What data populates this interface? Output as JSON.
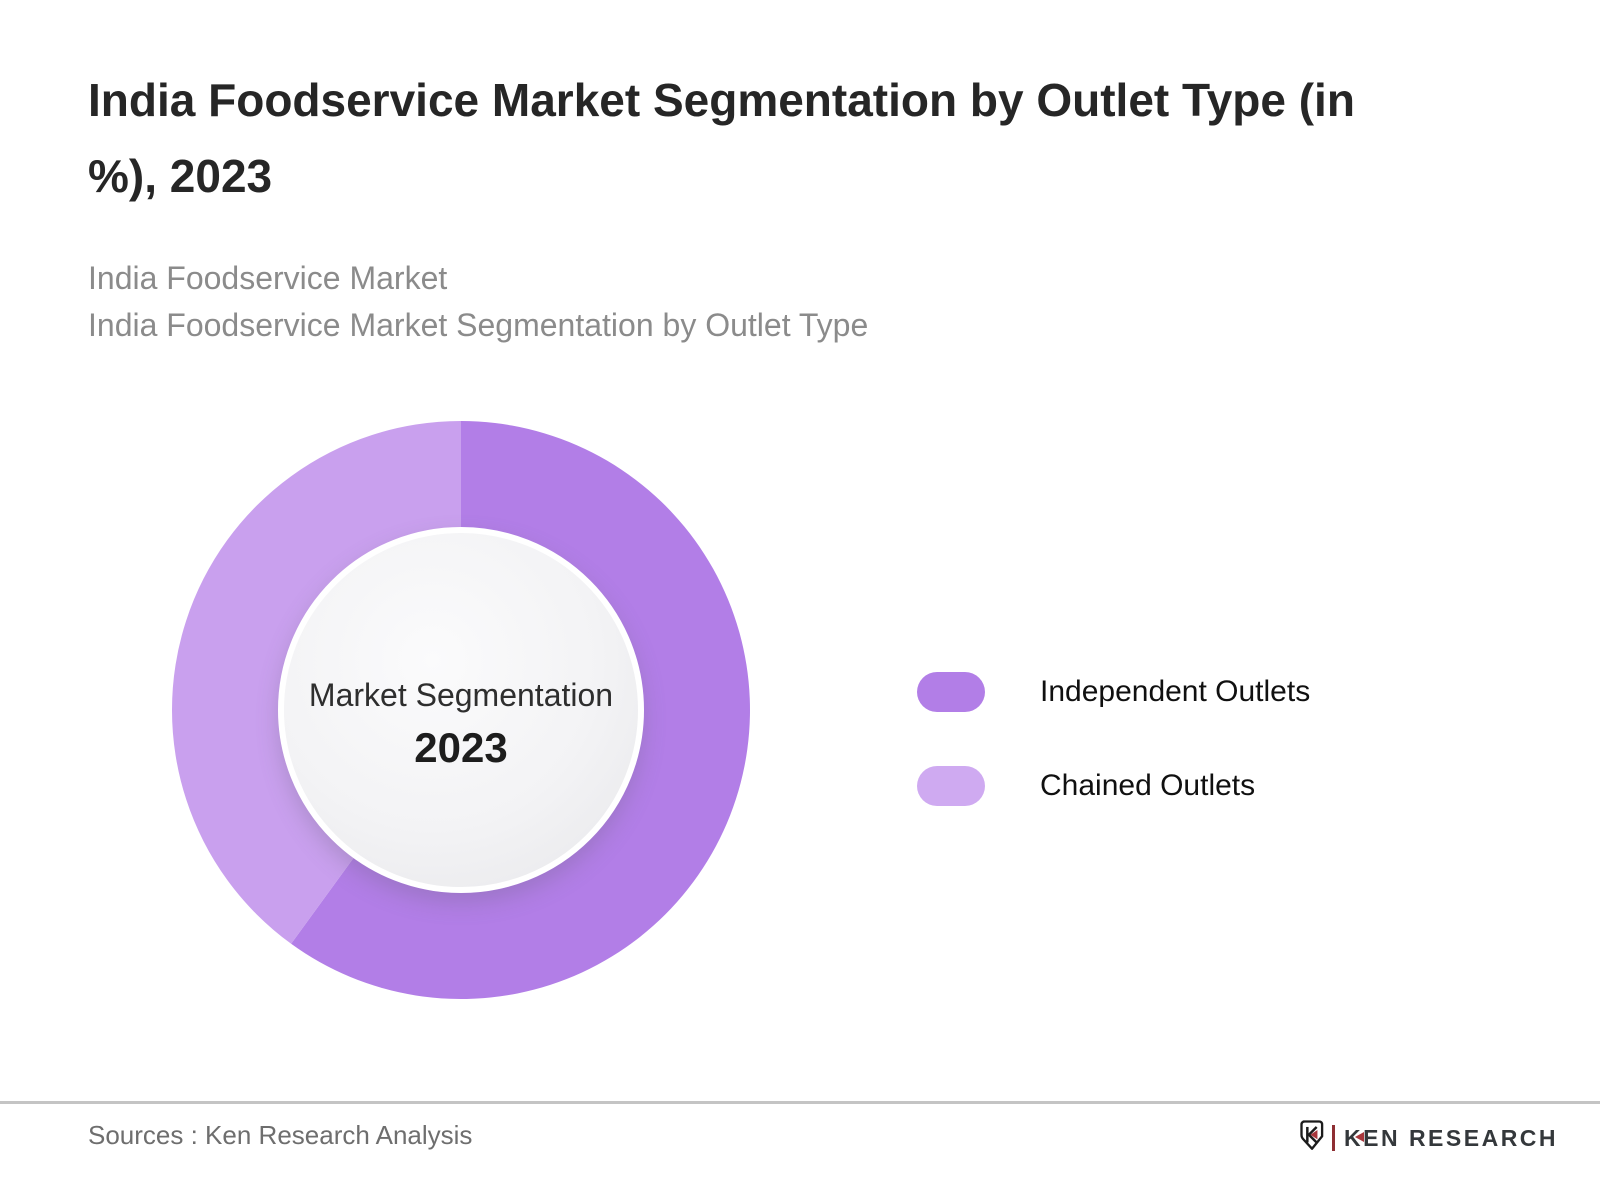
{
  "page": {
    "title": "India Foodservice Market Segmentation by Outlet Type (in %), 2023",
    "title_lines": [
      "India Foodservice Market Segmentation by Outlet Type (in",
      "%), 2023"
    ],
    "subtitle_lines": [
      "India Foodservice Market",
      "India Foodservice Market Segmentation by Outlet Type"
    ]
  },
  "chart_data": {
    "type": "pie",
    "variant": "donut",
    "title": "India Foodservice Market Segmentation by Outlet Type (in %), 2023",
    "center_label": "Market Segmentation",
    "center_year": "2023",
    "categories": [
      "Independent Outlets",
      "Chained Outlets"
    ],
    "values": [
      60,
      40
    ],
    "unit": "%",
    "colors": [
      "#b27ee7",
      "#c9a0ee"
    ],
    "start_angle_deg": 0,
    "direction": "clockwise",
    "legend_position": "right"
  },
  "legend": {
    "items": [
      {
        "label": "Independent Outlets",
        "color": "#b27ee7"
      },
      {
        "label": "Chained Outlets",
        "color": "#cfaaf1"
      }
    ]
  },
  "footer": {
    "sources": "Sources : Ken Research Analysis",
    "logo": {
      "emblem": "ken-research-shield-k",
      "wordmark": "KEN RESEARCH"
    }
  }
}
